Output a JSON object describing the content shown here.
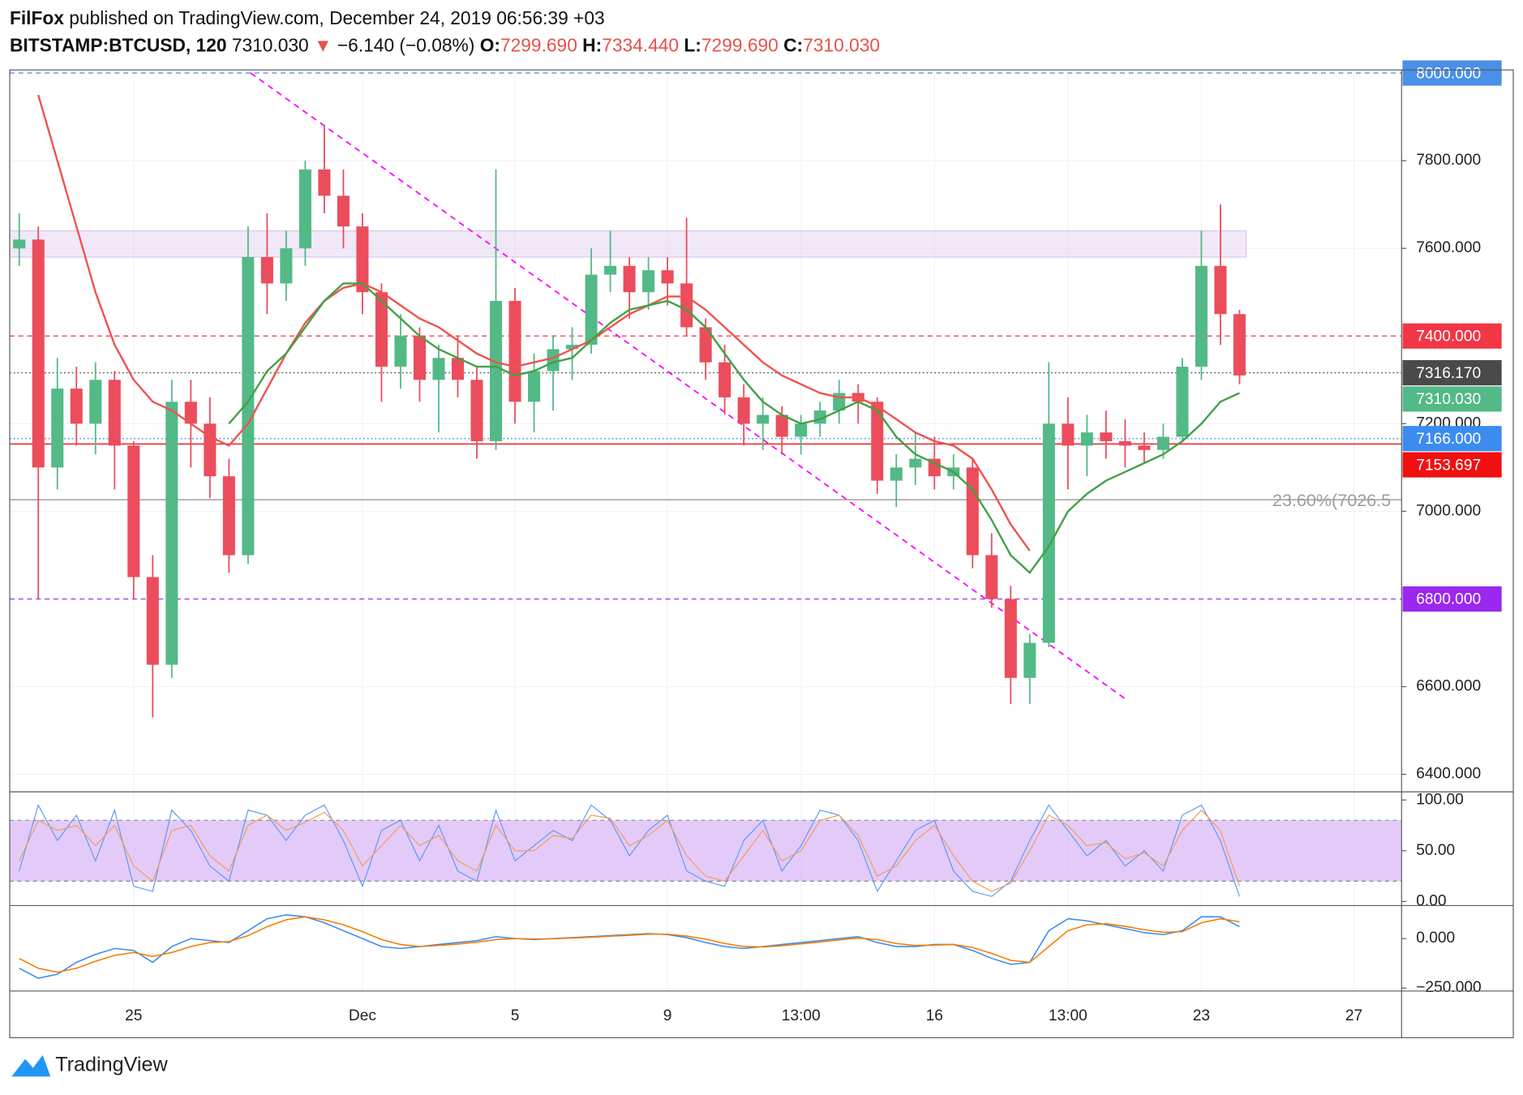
{
  "header": {
    "publisher": "FilFox",
    "published": "published on TradingView.com, December 24, 2019 06:56:39 +03",
    "symbol": "BITSTAMP:BTCUSD, 120",
    "last": "7310.030",
    "arrow": "▼",
    "change": "−6.140 (−0.08%)",
    "o_label": "O:",
    "o": "7299.690",
    "h_label": "H:",
    "h": "7334.440",
    "l_label": "L:",
    "l": "7299.690",
    "c_label": "C:",
    "c": "7310.030"
  },
  "footer": {
    "brand": "TradingView"
  },
  "chart_data": {
    "type": "candlestick",
    "categories": [
      null,
      null,
      null,
      null,
      null,
      null,
      "25",
      null,
      null,
      null,
      null,
      null,
      null,
      null,
      null,
      null,
      null,
      null,
      "Dec",
      null,
      null,
      null,
      null,
      null,
      null,
      null,
      "5",
      null,
      null,
      null,
      null,
      null,
      null,
      null,
      "9",
      null,
      null,
      null,
      null,
      null,
      null,
      "13:00",
      null,
      null,
      null,
      null,
      null,
      null,
      "16",
      null,
      null,
      null,
      null,
      null,
      null,
      "13:00",
      null,
      null,
      null,
      null,
      null,
      null,
      "23",
      null,
      null,
      null,
      null,
      null,
      null,
      null,
      "27",
      null,
      null
    ],
    "candles": [
      [
        7600,
        7680,
        7560,
        7620
      ],
      [
        7620,
        7650,
        6800,
        7100
      ],
      [
        7100,
        7350,
        7050,
        7280
      ],
      [
        7280,
        7330,
        7150,
        7200
      ],
      [
        7200,
        7340,
        7130,
        7300
      ],
      [
        7300,
        7320,
        7050,
        7150
      ],
      [
        7150,
        7160,
        6800,
        6850
      ],
      [
        6850,
        6900,
        6530,
        6650
      ],
      [
        6650,
        7300,
        6620,
        7250
      ],
      [
        7250,
        7300,
        7100,
        7200
      ],
      [
        7200,
        7260,
        7030,
        7080
      ],
      [
        7080,
        7120,
        6860,
        6900
      ],
      [
        6900,
        7650,
        6880,
        7580
      ],
      [
        7580,
        7680,
        7450,
        7520
      ],
      [
        7520,
        7640,
        7480,
        7600
      ],
      [
        7600,
        7800,
        7560,
        7780
      ],
      [
        7780,
        7880,
        7680,
        7720
      ],
      [
        7720,
        7780,
        7600,
        7650
      ],
      [
        7650,
        7680,
        7450,
        7500
      ],
      [
        7500,
        7520,
        7250,
        7330
      ],
      [
        7330,
        7450,
        7280,
        7400
      ],
      [
        7400,
        7420,
        7250,
        7300
      ],
      [
        7300,
        7380,
        7180,
        7350
      ],
      [
        7350,
        7400,
        7260,
        7300
      ],
      [
        7300,
        7330,
        7120,
        7160
      ],
      [
        7160,
        7780,
        7140,
        7480
      ],
      [
        7480,
        7510,
        7200,
        7250
      ],
      [
        7250,
        7360,
        7180,
        7320
      ],
      [
        7320,
        7400,
        7230,
        7370
      ],
      [
        7370,
        7420,
        7300,
        7380
      ],
      [
        7380,
        7600,
        7360,
        7540
      ],
      [
        7540,
        7640,
        7500,
        7560
      ],
      [
        7560,
        7580,
        7440,
        7500
      ],
      [
        7500,
        7580,
        7460,
        7550
      ],
      [
        7550,
        7580,
        7470,
        7520
      ],
      [
        7520,
        7670,
        7400,
        7420
      ],
      [
        7420,
        7440,
        7300,
        7340
      ],
      [
        7340,
        7380,
        7220,
        7260
      ],
      [
        7260,
        7290,
        7150,
        7200
      ],
      [
        7200,
        7260,
        7140,
        7220
      ],
      [
        7220,
        7240,
        7130,
        7170
      ],
      [
        7170,
        7220,
        7130,
        7200
      ],
      [
        7200,
        7250,
        7170,
        7230
      ],
      [
        7230,
        7300,
        7200,
        7270
      ],
      [
        7270,
        7290,
        7200,
        7250
      ],
      [
        7250,
        7260,
        7040,
        7070
      ],
      [
        7070,
        7130,
        7010,
        7100
      ],
      [
        7100,
        7180,
        7060,
        7120
      ],
      [
        7120,
        7170,
        7050,
        7080
      ],
      [
        7080,
        7130,
        7050,
        7100
      ],
      [
        7100,
        7120,
        6870,
        6900
      ],
      [
        6900,
        6950,
        6780,
        6800
      ],
      [
        6800,
        6830,
        6560,
        6620
      ],
      [
        6620,
        6720,
        6560,
        6700
      ],
      [
        6700,
        7340,
        6690,
        7200
      ],
      [
        7200,
        7260,
        7050,
        7150
      ],
      [
        7150,
        7220,
        7080,
        7180
      ],
      [
        7180,
        7230,
        7120,
        7160
      ],
      [
        7160,
        7210,
        7100,
        7150
      ],
      [
        7150,
        7180,
        7110,
        7140
      ],
      [
        7140,
        7200,
        7120,
        7170
      ],
      [
        7170,
        7350,
        7160,
        7330
      ],
      [
        7330,
        7640,
        7300,
        7560
      ],
      [
        7560,
        7700,
        7380,
        7450
      ],
      [
        7450,
        7460,
        7290,
        7310.03
      ],
      null,
      null,
      null,
      null,
      null,
      null,
      null,
      null
    ],
    "up_color": "#53b987",
    "down_color": "#eb4d5c",
    "ylim": [
      6360,
      8007
    ],
    "yticks": [
      {
        "value": 6400,
        "label": "6400.000"
      },
      {
        "value": 6600,
        "label": "6600.000"
      },
      {
        "value": 7000,
        "label": "7000.000"
      },
      {
        "value": 7200,
        "label": "7200.000"
      },
      {
        "value": 7600,
        "label": "7600.000"
      },
      {
        "value": 7800,
        "label": "7800.000"
      }
    ],
    "grid": true,
    "moving_averages": [
      {
        "color": "#ef5350",
        "values": [
          null,
          7950,
          7800,
          7650,
          7500,
          7380,
          7300,
          7250,
          7230,
          7200,
          7170,
          7150,
          7200,
          7280,
          7360,
          7430,
          7480,
          7510,
          7520,
          7500,
          7470,
          7440,
          7420,
          7390,
          7360,
          7340,
          7330,
          7340,
          7350,
          7370,
          7390,
          7420,
          7450,
          7470,
          7490,
          7490,
          7460,
          7420,
          7380,
          7340,
          7310,
          7290,
          7270,
          7260,
          7260,
          7240,
          7210,
          7180,
          7160,
          7150,
          7120,
          7050,
          6970,
          6910,
          null,
          null,
          null,
          null,
          null,
          null,
          null,
          null,
          null,
          null,
          null,
          null,
          null,
          null,
          null,
          null,
          null,
          null,
          null
        ]
      },
      {
        "color": "#43a047",
        "values": [
          null,
          null,
          null,
          null,
          null,
          null,
          null,
          null,
          null,
          null,
          null,
          7200,
          7250,
          7320,
          7360,
          7420,
          7480,
          7520,
          7520,
          7480,
          7440,
          7400,
          7370,
          7350,
          7330,
          7330,
          7310,
          7320,
          7340,
          7350,
          7390,
          7430,
          7460,
          7470,
          7480,
          7460,
          7420,
          7360,
          7300,
          7250,
          7220,
          7200,
          7210,
          7230,
          7250,
          7230,
          7170,
          7130,
          7110,
          7090,
          7050,
          6980,
          6900,
          6860,
          6920,
          7000,
          7040,
          7070,
          7090,
          7110,
          7130,
          7160,
          7200,
          7250,
          7270,
          null,
          null,
          null,
          null,
          null,
          null,
          null,
          null
        ]
      }
    ],
    "levels": [
      {
        "value": 8000,
        "label": "8000.000",
        "color": "#4a8fe8",
        "line_style": "dashed"
      },
      {
        "value": 7400,
        "label": "7400.000",
        "color": "#f23645",
        "line_style": "dashed"
      },
      {
        "value": 7316.17,
        "label": "7316.170",
        "color": "#4a4a4a",
        "line_style": "dotted"
      },
      {
        "value": 7310.03,
        "label": "7310.030",
        "color": "#53b987",
        "line_style": "none"
      },
      {
        "value": 7166,
        "label": "7166.000",
        "color": "#3c8cf0",
        "line_style": "dotted"
      },
      {
        "value": 7153.697,
        "label": "7153.697",
        "color": "#f01010",
        "line_style": "solid"
      },
      {
        "value": 6800,
        "label": "6800.000",
        "color": "#9c27f0",
        "line_style": "dashed"
      }
    ],
    "zone": {
      "from": 7580,
      "to": 7640,
      "color": "#c9a6e0"
    },
    "trendline": {
      "start": 8000,
      "end": 6570,
      "color": "#ff00ff"
    },
    "fib": {
      "value": 7026.5,
      "label": "23.60%(7026.5",
      "color": "#9e9e9e"
    },
    "stoch": {
      "ylim": [
        -4,
        108
      ],
      "yticks": [
        {
          "value": 0,
          "label": "0.00"
        },
        {
          "value": 50,
          "label": "50.00"
        },
        {
          "value": 100,
          "label": "100.00"
        }
      ],
      "bands": [
        20,
        80
      ],
      "band_color": "#d9b3f5",
      "k_color": "#5b9cf6",
      "d_color": "#f39c5a",
      "k": [
        30,
        95,
        60,
        85,
        40,
        90,
        15,
        10,
        90,
        70,
        35,
        20,
        90,
        85,
        60,
        85,
        95,
        60,
        15,
        70,
        80,
        40,
        75,
        30,
        20,
        90,
        40,
        55,
        70,
        60,
        95,
        80,
        45,
        70,
        85,
        30,
        20,
        15,
        60,
        80,
        30,
        55,
        90,
        85,
        60,
        10,
        40,
        70,
        80,
        30,
        10,
        5,
        20,
        60,
        95,
        70,
        45,
        60,
        35,
        50,
        30,
        85,
        95,
        60,
        5,
        null,
        null,
        null,
        null,
        null,
        null,
        null,
        null
      ],
      "d": [
        40,
        80,
        70,
        75,
        55,
        75,
        35,
        20,
        70,
        75,
        45,
        30,
        75,
        85,
        70,
        78,
        88,
        70,
        35,
        55,
        75,
        55,
        65,
        40,
        30,
        75,
        50,
        50,
        65,
        62,
        85,
        82,
        55,
        65,
        80,
        45,
        25,
        20,
        45,
        70,
        40,
        50,
        80,
        85,
        65,
        25,
        35,
        60,
        75,
        45,
        20,
        10,
        18,
        50,
        85,
        75,
        55,
        58,
        42,
        48,
        35,
        70,
        90,
        70,
        15,
        null,
        null,
        null,
        null,
        null,
        null,
        null,
        null
      ]
    },
    "macd": {
      "ylim": [
        -265,
        167
      ],
      "yticks": [
        {
          "value": 0,
          "label": "0.000"
        },
        {
          "value": -250,
          "label": "−250.000"
        }
      ],
      "macd_color": "#3c8cf0",
      "signal_color": "#f57c00",
      "macd": [
        -150,
        -200,
        -180,
        -120,
        -80,
        -50,
        -60,
        -120,
        -40,
        0,
        -10,
        -20,
        40,
        100,
        120,
        110,
        80,
        40,
        0,
        -40,
        -50,
        -40,
        -30,
        -20,
        -10,
        10,
        0,
        -5,
        0,
        5,
        10,
        15,
        20,
        25,
        20,
        5,
        -20,
        -40,
        -50,
        -40,
        -30,
        -20,
        -10,
        0,
        10,
        -20,
        -40,
        -40,
        -30,
        -30,
        -60,
        -100,
        -130,
        -120,
        40,
        100,
        90,
        70,
        50,
        30,
        20,
        40,
        110,
        110,
        60,
        null,
        null,
        null,
        null,
        null,
        null,
        null,
        null
      ],
      "signal": [
        -100,
        -150,
        -170,
        -150,
        -115,
        -85,
        -70,
        -90,
        -70,
        -40,
        -20,
        -15,
        15,
        60,
        95,
        110,
        95,
        70,
        35,
        -5,
        -30,
        -40,
        -35,
        -28,
        -18,
        -5,
        0,
        -2,
        -1,
        3,
        7,
        12,
        17,
        22,
        22,
        13,
        -3,
        -25,
        -40,
        -42,
        -36,
        -27,
        -17,
        -7,
        3,
        -5,
        -25,
        -35,
        -33,
        -30,
        -45,
        -75,
        -110,
        -120,
        -40,
        40,
        70,
        75,
        62,
        45,
        32,
        35,
        80,
        100,
        85,
        null,
        null,
        null,
        null,
        null,
        null,
        null,
        null
      ]
    }
  }
}
